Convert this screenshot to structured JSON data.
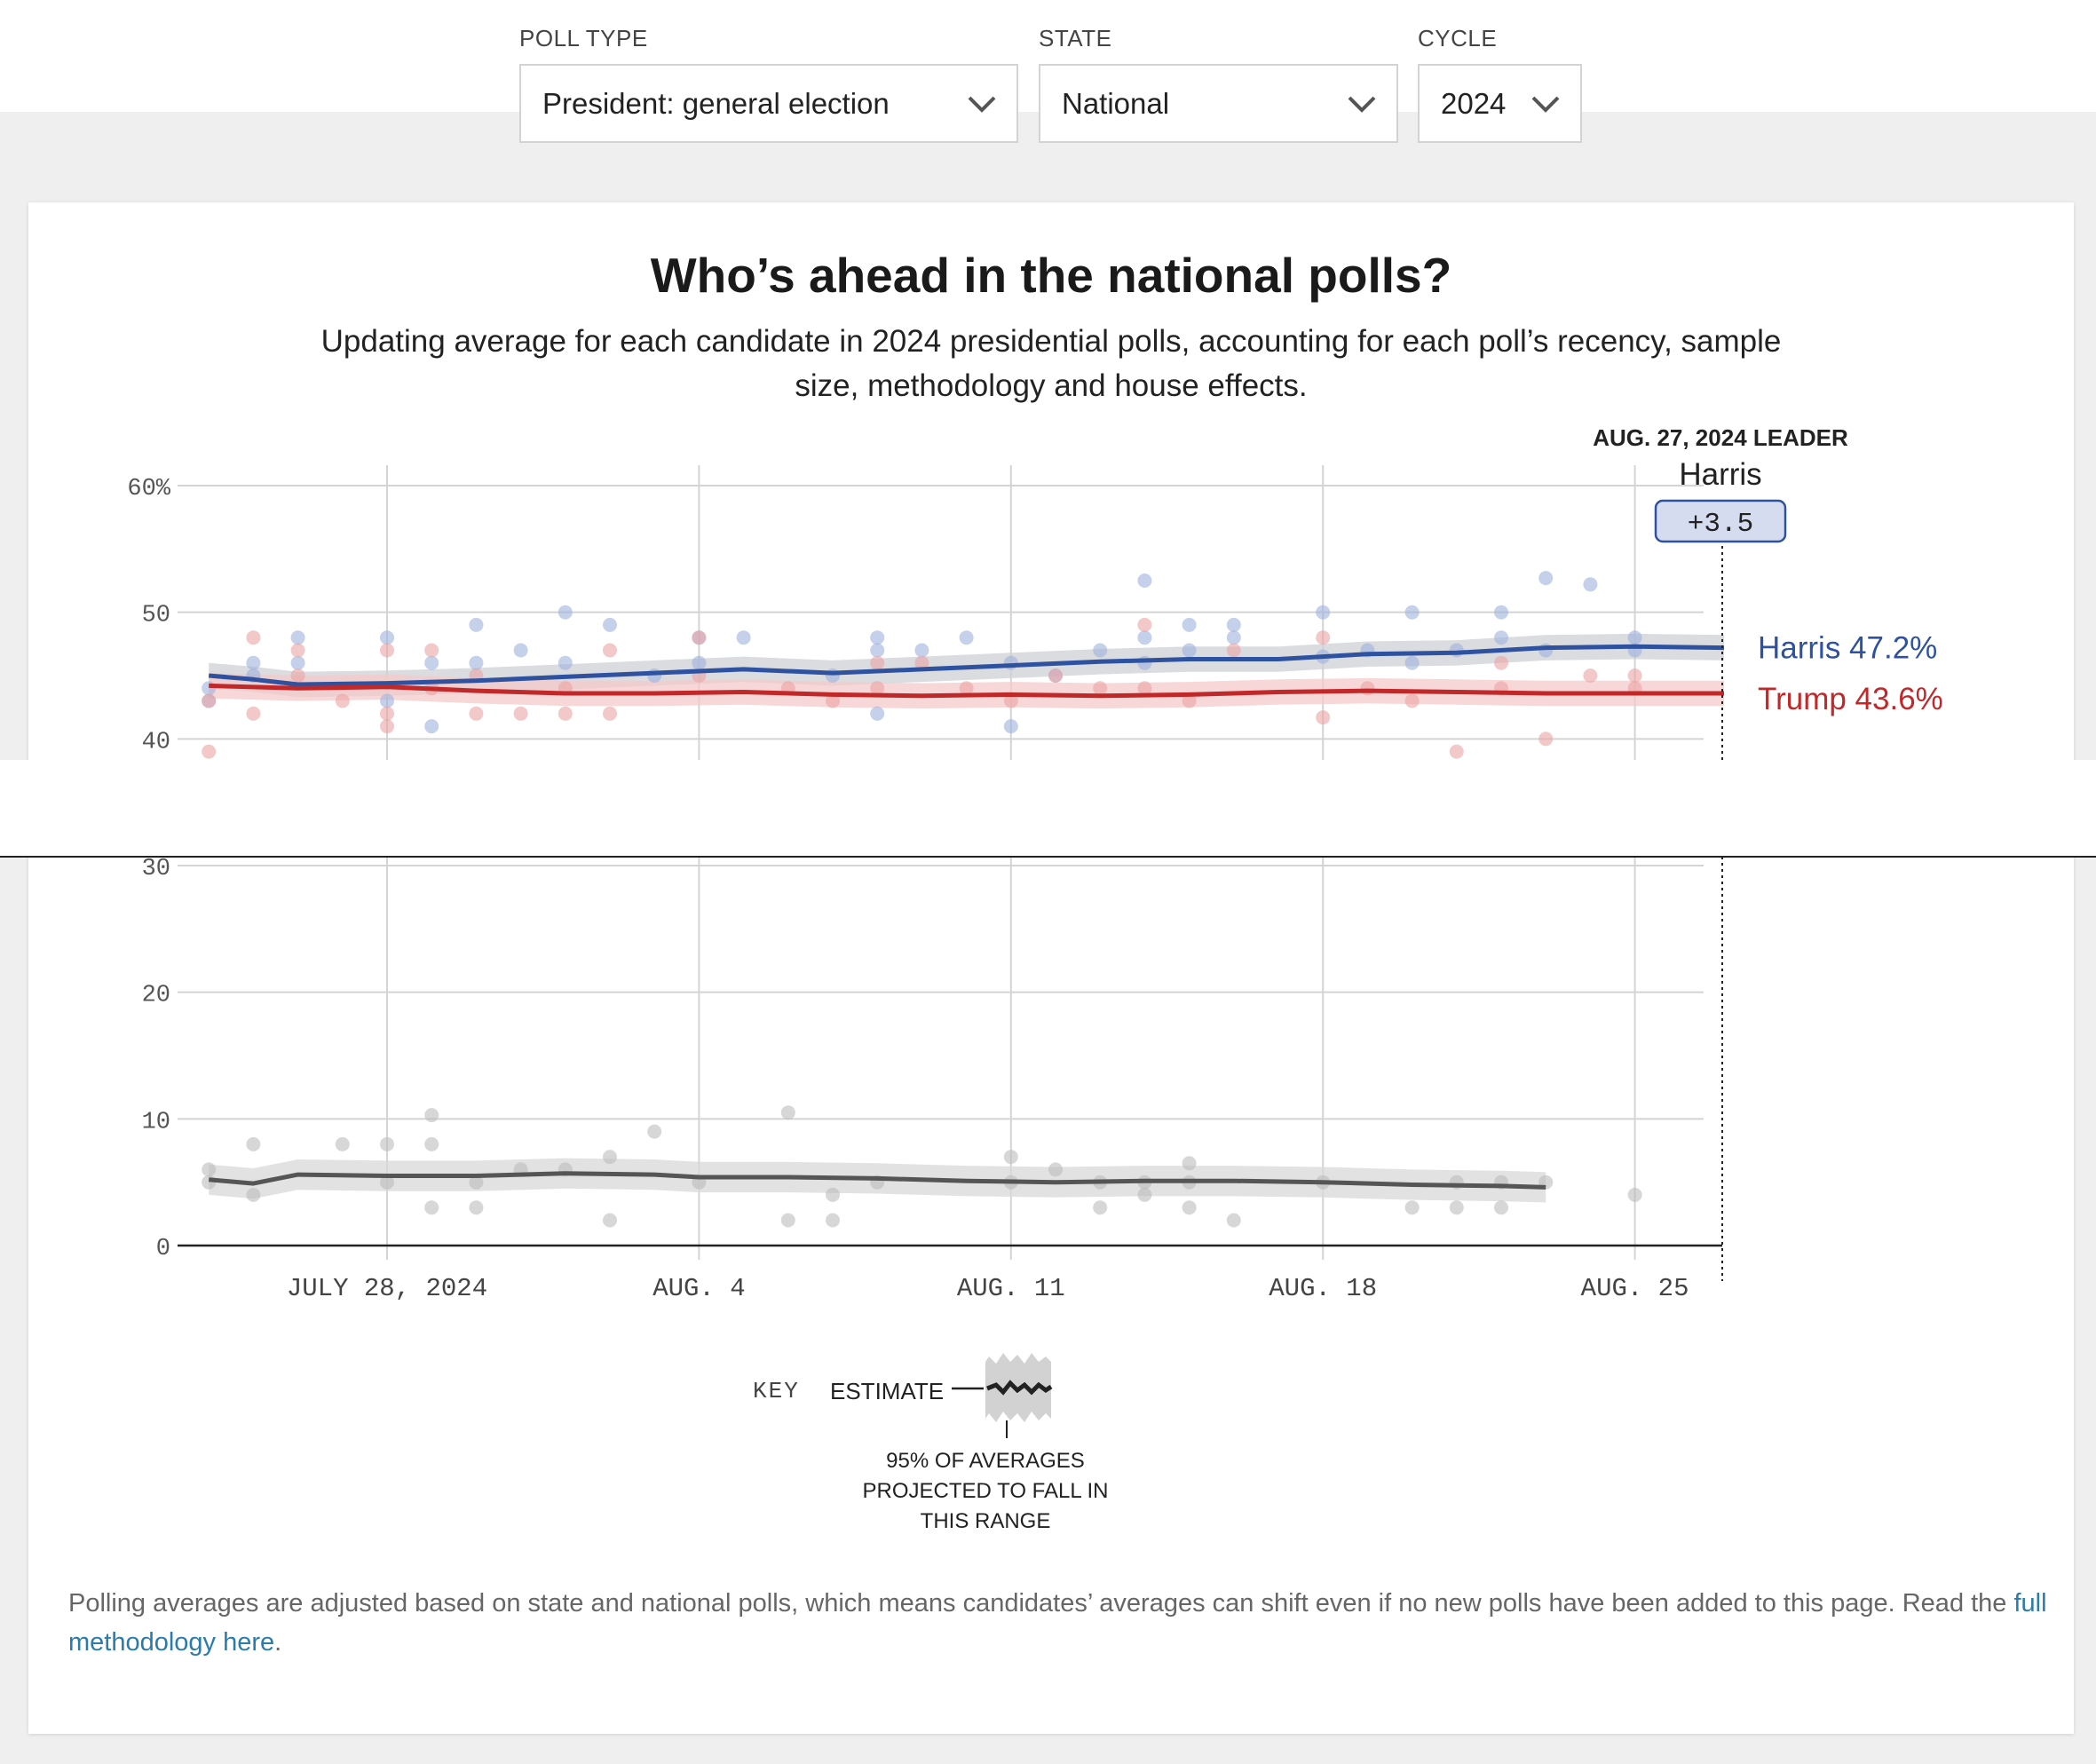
{
  "controls": {
    "poll_type": {
      "label": "POLL TYPE",
      "value": "President: general election"
    },
    "state": {
      "label": "STATE",
      "value": "National"
    },
    "cycle": {
      "label": "CYCLE",
      "value": "2024"
    }
  },
  "card": {
    "title": "Who’s ahead in the national polls?",
    "subtitle": "Updating average for each candidate in 2024 presidential polls, accounting for each poll’s recency, sample size, methodology and house effects.",
    "footnote_text": "Polling averages are adjusted based on state and national polls, which means candidates’ averages can shift even if no new polls have been added to this page. Read the ",
    "footnote_link": "full methodology here",
    "footnote_end": "."
  },
  "leader": {
    "heading": "AUG. 27, 2024 LEADER",
    "name": "Harris",
    "margin": "+3.5"
  },
  "key": {
    "label": "KEY",
    "estimate": "ESTIMATE",
    "range_note_1": "95% OF AVERAGES",
    "range_note_2": "PROJECTED TO FALL IN",
    "range_note_3": "THIS RANGE"
  },
  "colors": {
    "harris": "#2f52a0",
    "trump": "#c0282a",
    "other": "#555555",
    "band": "#cfcfcf",
    "link": "#2b7bab"
  },
  "chart_data": {
    "type": "line",
    "title": "Who’s ahead in the national polls?",
    "x_start": "2024-07-24",
    "x_end": "2024-08-27",
    "ylim": [
      0,
      60
    ],
    "y_ticks": [
      0,
      10,
      20,
      30,
      40,
      50,
      60
    ],
    "y_tick_labels": [
      "0",
      "10",
      "20",
      "30",
      "40",
      "50",
      "60%"
    ],
    "x_ticks": [
      {
        "date": "2024-07-28",
        "label": "JULY 28, 2024"
      },
      {
        "date": "2024-08-04",
        "label": "AUG. 4"
      },
      {
        "date": "2024-08-11",
        "label": "AUG. 11"
      },
      {
        "date": "2024-08-18",
        "label": "AUG. 18"
      },
      {
        "date": "2024-08-25",
        "label": "AUG. 25"
      }
    ],
    "grid": true,
    "series": [
      {
        "name": "Harris",
        "end_label": "Harris 47.2%",
        "color": "#2f52a0",
        "line": [
          [
            "2024-07-24",
            45.0
          ],
          [
            "2024-07-25",
            44.7
          ],
          [
            "2024-07-26",
            44.3
          ],
          [
            "2024-07-28",
            44.4
          ],
          [
            "2024-07-30",
            44.6
          ],
          [
            "2024-08-01",
            44.9
          ],
          [
            "2024-08-03",
            45.2
          ],
          [
            "2024-08-05",
            45.5
          ],
          [
            "2024-08-07",
            45.2
          ],
          [
            "2024-08-09",
            45.5
          ],
          [
            "2024-08-11",
            45.8
          ],
          [
            "2024-08-13",
            46.1
          ],
          [
            "2024-08-15",
            46.3
          ],
          [
            "2024-08-17",
            46.3
          ],
          [
            "2024-08-19",
            46.7
          ],
          [
            "2024-08-21",
            46.8
          ],
          [
            "2024-08-23",
            47.2
          ],
          [
            "2024-08-25",
            47.3
          ],
          [
            "2024-08-27",
            47.2
          ]
        ],
        "band": 1.0,
        "polls": [
          [
            "2024-07-24",
            43
          ],
          [
            "2024-07-24",
            44
          ],
          [
            "2024-07-25",
            46
          ],
          [
            "2024-07-25",
            45
          ],
          [
            "2024-07-26",
            48
          ],
          [
            "2024-07-26",
            46
          ],
          [
            "2024-07-28",
            48
          ],
          [
            "2024-07-28",
            43
          ],
          [
            "2024-07-29",
            46
          ],
          [
            "2024-07-29",
            41
          ],
          [
            "2024-07-30",
            49
          ],
          [
            "2024-07-30",
            46
          ],
          [
            "2024-07-31",
            47
          ],
          [
            "2024-08-01",
            50
          ],
          [
            "2024-08-01",
            46
          ],
          [
            "2024-08-02",
            49
          ],
          [
            "2024-08-03",
            45
          ],
          [
            "2024-08-04",
            48
          ],
          [
            "2024-08-04",
            46
          ],
          [
            "2024-08-05",
            48
          ],
          [
            "2024-08-07",
            45
          ],
          [
            "2024-08-08",
            48
          ],
          [
            "2024-08-08",
            42
          ],
          [
            "2024-08-08",
            47
          ],
          [
            "2024-08-09",
            47
          ],
          [
            "2024-08-10",
            48
          ],
          [
            "2024-08-11",
            46
          ],
          [
            "2024-08-11",
            41
          ],
          [
            "2024-08-12",
            45
          ],
          [
            "2024-08-13",
            47
          ],
          [
            "2024-08-14",
            52.5
          ],
          [
            "2024-08-14",
            48
          ],
          [
            "2024-08-14",
            46
          ],
          [
            "2024-08-15",
            49
          ],
          [
            "2024-08-15",
            47
          ],
          [
            "2024-08-16",
            49
          ],
          [
            "2024-08-16",
            48
          ],
          [
            "2024-08-18",
            50
          ],
          [
            "2024-08-18",
            46.5
          ],
          [
            "2024-08-19",
            47
          ],
          [
            "2024-08-20",
            50
          ],
          [
            "2024-08-20",
            46
          ],
          [
            "2024-08-21",
            47
          ],
          [
            "2024-08-22",
            50
          ],
          [
            "2024-08-22",
            48
          ],
          [
            "2024-08-23",
            52.7
          ],
          [
            "2024-08-23",
            47
          ],
          [
            "2024-08-24",
            52.2
          ],
          [
            "2024-08-25",
            48
          ],
          [
            "2024-08-25",
            47
          ]
        ]
      },
      {
        "name": "Trump",
        "end_label": "Trump 43.6%",
        "color": "#c0282a",
        "line": [
          [
            "2024-07-24",
            44.2
          ],
          [
            "2024-07-26",
            44.0
          ],
          [
            "2024-07-28",
            44.1
          ],
          [
            "2024-07-30",
            43.8
          ],
          [
            "2024-08-01",
            43.6
          ],
          [
            "2024-08-03",
            43.6
          ],
          [
            "2024-08-05",
            43.7
          ],
          [
            "2024-08-07",
            43.5
          ],
          [
            "2024-08-09",
            43.4
          ],
          [
            "2024-08-11",
            43.5
          ],
          [
            "2024-08-13",
            43.4
          ],
          [
            "2024-08-15",
            43.5
          ],
          [
            "2024-08-17",
            43.7
          ],
          [
            "2024-08-19",
            43.8
          ],
          [
            "2024-08-21",
            43.7
          ],
          [
            "2024-08-23",
            43.6
          ],
          [
            "2024-08-25",
            43.6
          ],
          [
            "2024-08-27",
            43.6
          ]
        ],
        "band": 1.0,
        "polls": [
          [
            "2024-07-24",
            39
          ],
          [
            "2024-07-24",
            43
          ],
          [
            "2024-07-25",
            48
          ],
          [
            "2024-07-25",
            42
          ],
          [
            "2024-07-26",
            47
          ],
          [
            "2024-07-26",
            45
          ],
          [
            "2024-07-27",
            43
          ],
          [
            "2024-07-28",
            47
          ],
          [
            "2024-07-28",
            42
          ],
          [
            "2024-07-28",
            41
          ],
          [
            "2024-07-29",
            47
          ],
          [
            "2024-07-29",
            44
          ],
          [
            "2024-07-30",
            42
          ],
          [
            "2024-07-30",
            45
          ],
          [
            "2024-07-31",
            42
          ],
          [
            "2024-08-01",
            42
          ],
          [
            "2024-08-01",
            44
          ],
          [
            "2024-08-02",
            47
          ],
          [
            "2024-08-02",
            42
          ],
          [
            "2024-08-04",
            48
          ],
          [
            "2024-08-04",
            45
          ],
          [
            "2024-08-06",
            44
          ],
          [
            "2024-08-07",
            43
          ],
          [
            "2024-08-08",
            46
          ],
          [
            "2024-08-08",
            44
          ],
          [
            "2024-08-09",
            46
          ],
          [
            "2024-08-10",
            44
          ],
          [
            "2024-08-11",
            43
          ],
          [
            "2024-08-12",
            45
          ],
          [
            "2024-08-13",
            44
          ],
          [
            "2024-08-14",
            49
          ],
          [
            "2024-08-14",
            44
          ],
          [
            "2024-08-15",
            43
          ],
          [
            "2024-08-16",
            47
          ],
          [
            "2024-08-18",
            48
          ],
          [
            "2024-08-18",
            41.7
          ],
          [
            "2024-08-19",
            44
          ],
          [
            "2024-08-20",
            43
          ],
          [
            "2024-08-21",
            39
          ],
          [
            "2024-08-22",
            46
          ],
          [
            "2024-08-22",
            44
          ],
          [
            "2024-08-23",
            40
          ],
          [
            "2024-08-24",
            45
          ],
          [
            "2024-08-25",
            45
          ],
          [
            "2024-08-25",
            44
          ]
        ]
      },
      {
        "name": "Other",
        "end_label": "",
        "color": "#555555",
        "line": [
          [
            "2024-07-24",
            5.2
          ],
          [
            "2024-07-25",
            4.9
          ],
          [
            "2024-07-26",
            5.6
          ],
          [
            "2024-07-28",
            5.5
          ],
          [
            "2024-07-30",
            5.5
          ],
          [
            "2024-08-01",
            5.7
          ],
          [
            "2024-08-03",
            5.6
          ],
          [
            "2024-08-04",
            5.4
          ],
          [
            "2024-08-06",
            5.4
          ],
          [
            "2024-08-08",
            5.3
          ],
          [
            "2024-08-10",
            5.1
          ],
          [
            "2024-08-12",
            5.0
          ],
          [
            "2024-08-14",
            5.1
          ],
          [
            "2024-08-16",
            5.1
          ],
          [
            "2024-08-18",
            5.0
          ],
          [
            "2024-08-20",
            4.8
          ],
          [
            "2024-08-22",
            4.7
          ],
          [
            "2024-08-23",
            4.6
          ]
        ],
        "band": 1.2,
        "polls": [
          [
            "2024-07-24",
            6
          ],
          [
            "2024-07-24",
            5
          ],
          [
            "2024-07-25",
            8
          ],
          [
            "2024-07-25",
            4
          ],
          [
            "2024-07-27",
            8
          ],
          [
            "2024-07-28",
            8
          ],
          [
            "2024-07-28",
            5
          ],
          [
            "2024-07-29",
            10.3
          ],
          [
            "2024-07-29",
            8
          ],
          [
            "2024-07-29",
            3
          ],
          [
            "2024-07-30",
            5
          ],
          [
            "2024-07-30",
            3
          ],
          [
            "2024-07-31",
            6
          ],
          [
            "2024-08-01",
            6
          ],
          [
            "2024-08-02",
            7
          ],
          [
            "2024-08-02",
            2
          ],
          [
            "2024-08-03",
            9
          ],
          [
            "2024-08-04",
            5
          ],
          [
            "2024-08-06",
            10.5
          ],
          [
            "2024-08-06",
            2
          ],
          [
            "2024-08-07",
            4
          ],
          [
            "2024-08-07",
            2
          ],
          [
            "2024-08-08",
            5
          ],
          [
            "2024-08-11",
            7
          ],
          [
            "2024-08-11",
            5
          ],
          [
            "2024-08-12",
            6
          ],
          [
            "2024-08-13",
            5
          ],
          [
            "2024-08-13",
            3
          ],
          [
            "2024-08-14",
            5
          ],
          [
            "2024-08-14",
            4
          ],
          [
            "2024-08-15",
            6.5
          ],
          [
            "2024-08-15",
            5
          ],
          [
            "2024-08-15",
            3
          ],
          [
            "2024-08-16",
            2
          ],
          [
            "2024-08-18",
            5
          ],
          [
            "2024-08-20",
            3
          ],
          [
            "2024-08-21",
            5
          ],
          [
            "2024-08-21",
            3
          ],
          [
            "2024-08-22",
            5
          ],
          [
            "2024-08-22",
            3
          ],
          [
            "2024-08-23",
            5
          ],
          [
            "2024-08-25",
            4
          ]
        ]
      }
    ]
  }
}
